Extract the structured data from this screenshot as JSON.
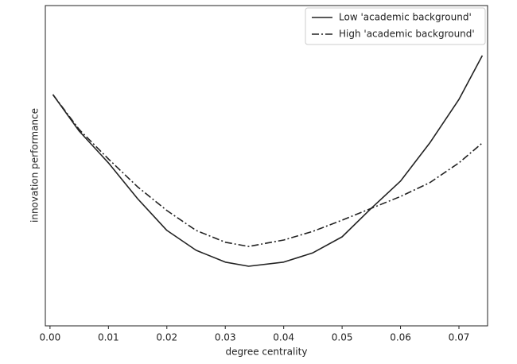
{
  "chart_data": {
    "type": "line",
    "xlabel": "degree centrality",
    "ylabel": "innovation performance",
    "x": [
      0.0005,
      0.005,
      0.01,
      0.015,
      0.02,
      0.025,
      0.03,
      0.034,
      0.04,
      0.045,
      0.05,
      0.055,
      0.06,
      0.065,
      0.07,
      0.074
    ],
    "series": [
      {
        "name": "Low 'academic background'",
        "color": "#222222",
        "style": "solid",
        "values": [
          72.2,
          60.8,
          50.9,
          39.7,
          29.8,
          23.6,
          19.9,
          18.6,
          19.9,
          22.8,
          27.8,
          36.7,
          45.2,
          57.1,
          70.7,
          84.4
        ]
      },
      {
        "name": "High 'academic background'",
        "color": "#222222",
        "style": "dashdot",
        "values": [
          72.2,
          61.3,
          52.1,
          43.4,
          36.0,
          29.8,
          26.1,
          24.8,
          26.8,
          29.5,
          33.0,
          36.7,
          40.4,
          44.7,
          50.9,
          57.1
        ]
      }
    ],
    "xlim": [
      -0.0008,
      0.0749
    ],
    "xticks": [
      {
        "value": 0,
        "label": "0.00"
      },
      0.01,
      0.02,
      0.03,
      0.04,
      0.05,
      0.06,
      0.07
    ],
    "ylim": [
      0,
      100
    ],
    "legend": "upper right"
  }
}
